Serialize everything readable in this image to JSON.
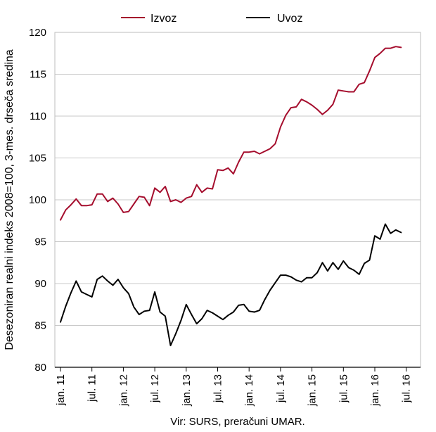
{
  "chart_data": {
    "type": "line",
    "ylabel": "Desezoniran realni indeks 2008=100, 3-mes. drseča sredina",
    "ylim": [
      80,
      120
    ],
    "yticks": [
      80,
      85,
      90,
      95,
      100,
      105,
      110,
      115,
      120
    ],
    "x_tick_labels": [
      "jan. 11",
      "jul. 11",
      "jan. 12",
      "jul. 12",
      "jan. 13",
      "jul. 13",
      "jan. 14",
      "jul. 14",
      "jan. 15",
      "jul. 15",
      "jan. 16",
      "jul. 16"
    ],
    "x_start": "2011-01",
    "legend_position": "top",
    "grid": "horizontal",
    "source": "Vir: SURS, preračuni UMAR.",
    "series": [
      {
        "name": "Izvoz",
        "color": "#a50d2d",
        "values": [
          97.6,
          98.8,
          99.4,
          100.1,
          99.3,
          99.3,
          99.4,
          100.7,
          100.7,
          99.8,
          100.2,
          99.5,
          98.5,
          98.6,
          99.5,
          100.4,
          100.3,
          99.3,
          101.4,
          100.9,
          101.6,
          99.8,
          100.0,
          99.7,
          100.2,
          100.4,
          101.8,
          100.9,
          101.4,
          101.3,
          103.6,
          103.5,
          103.8,
          103.1,
          104.5,
          105.7,
          105.7,
          105.8,
          105.5,
          105.8,
          106.1,
          106.7,
          108.7,
          110.1,
          111.0,
          111.1,
          112.0,
          111.7,
          111.3,
          110.8,
          110.2,
          110.7,
          111.4,
          113.1,
          113.0,
          112.9,
          112.9,
          113.8,
          114.0,
          115.4,
          117.0,
          117.5,
          118.1,
          118.1,
          118.3,
          118.2
        ]
      },
      {
        "name": "Uvoz",
        "color": "#000000",
        "values": [
          85.4,
          87.3,
          88.9,
          90.3,
          89.0,
          88.7,
          88.4,
          90.5,
          90.9,
          90.3,
          89.8,
          90.5,
          89.5,
          88.8,
          87.2,
          86.3,
          86.7,
          86.8,
          89.0,
          86.6,
          86.1,
          82.6,
          84.0,
          85.6,
          87.5,
          86.3,
          85.2,
          85.8,
          86.8,
          86.5,
          86.1,
          85.7,
          86.2,
          86.6,
          87.4,
          87.5,
          86.7,
          86.6,
          86.8,
          88.1,
          89.2,
          90.1,
          91.0,
          91.0,
          90.8,
          90.4,
          90.2,
          90.7,
          90.7,
          91.3,
          92.5,
          91.5,
          92.5,
          91.7,
          92.7,
          91.9,
          91.6,
          91.1,
          92.4,
          92.8,
          95.7,
          95.3,
          97.1,
          96.0,
          96.4,
          96.1
        ]
      }
    ]
  }
}
